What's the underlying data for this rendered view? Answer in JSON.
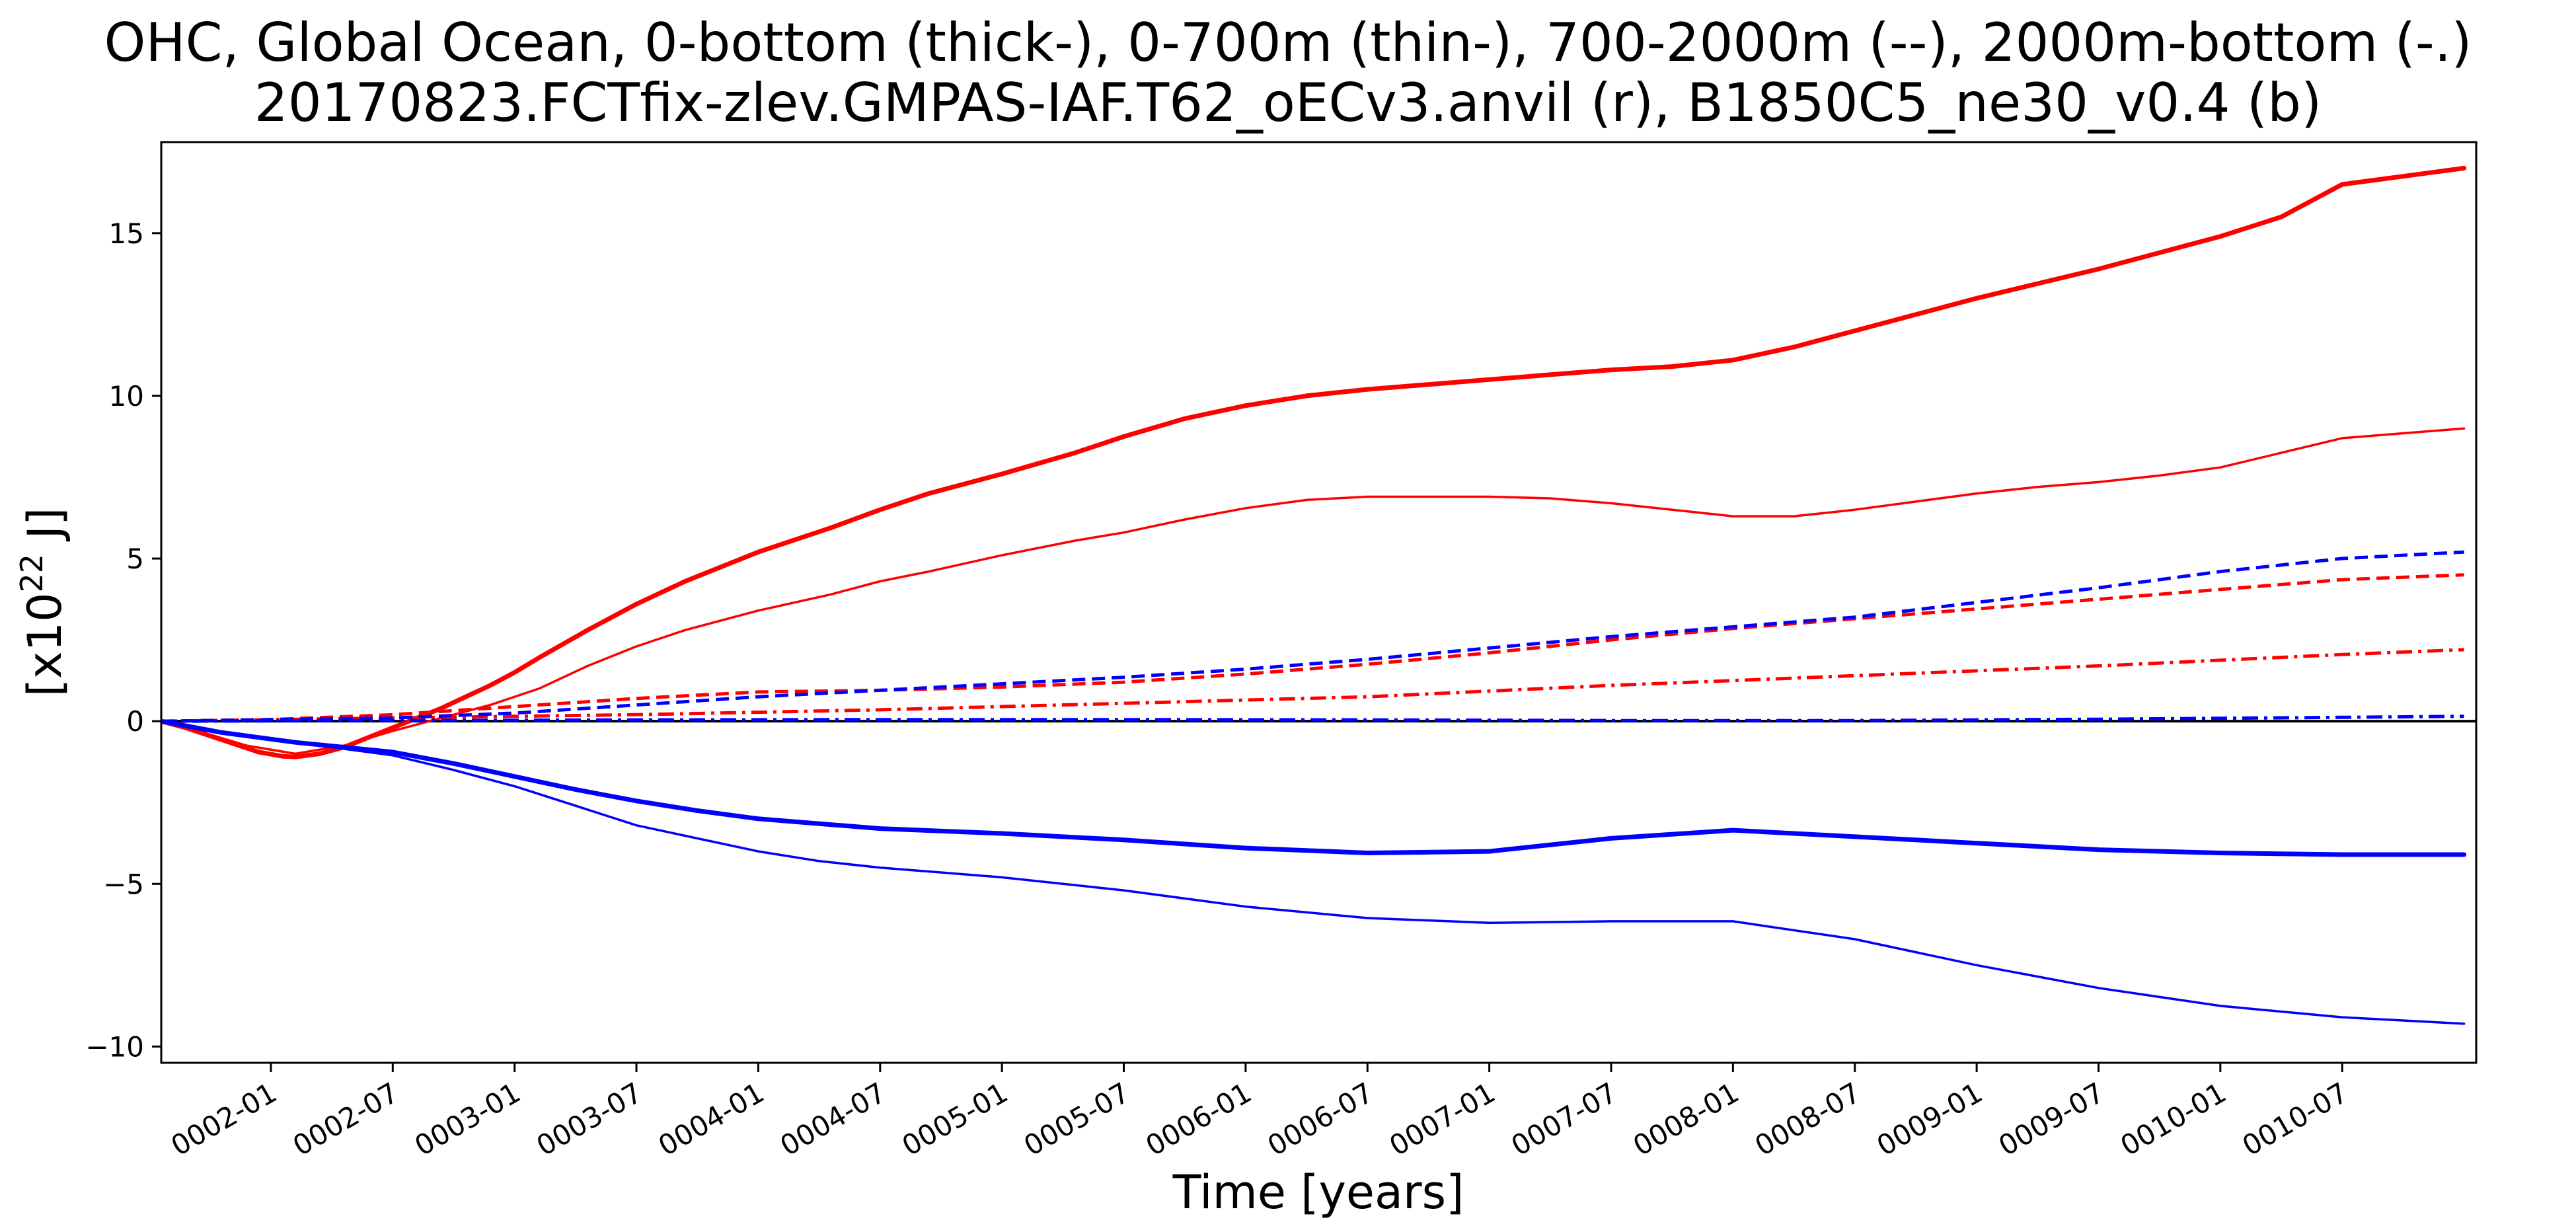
{
  "chart_data": {
    "type": "line",
    "title": "OHC, Global Ocean, 0-bottom (thick-), 0-700m (thin-), 700-2000m (--), 2000m-bottom (-.)",
    "subtitle": "20170823.FCTfix-zlev.GMPAS-IAF.T62_oECv3.anvil (r), B1850C5_ne30_v0.4 (b)",
    "xlabel": "Time [years]",
    "ylabel": {
      "base": "[x10",
      "superscript": "22",
      "unit": " J]"
    },
    "xlim": [
      1.05,
      10.55
    ],
    "ylim": [
      -10.5,
      17.8
    ],
    "grid": false,
    "legend": "none",
    "x_ticks": [
      {
        "x": 1.5,
        "label": "0002-01"
      },
      {
        "x": 2.0,
        "label": "0002-07"
      },
      {
        "x": 2.5,
        "label": "0003-01"
      },
      {
        "x": 3.0,
        "label": "0003-07"
      },
      {
        "x": 3.5,
        "label": "0004-01"
      },
      {
        "x": 4.0,
        "label": "0004-07"
      },
      {
        "x": 4.5,
        "label": "0005-01"
      },
      {
        "x": 5.0,
        "label": "0005-07"
      },
      {
        "x": 5.5,
        "label": "0006-01"
      },
      {
        "x": 6.0,
        "label": "0006-07"
      },
      {
        "x": 6.5,
        "label": "0007-01"
      },
      {
        "x": 7.0,
        "label": "0007-07"
      },
      {
        "x": 7.5,
        "label": "0008-01"
      },
      {
        "x": 8.0,
        "label": "0008-07"
      },
      {
        "x": 8.5,
        "label": "0009-01"
      },
      {
        "x": 9.0,
        "label": "0009-07"
      },
      {
        "x": 9.5,
        "label": "0010-01"
      },
      {
        "x": 10.0,
        "label": "0010-07"
      }
    ],
    "y_ticks": [
      {
        "y": -10,
        "label": "−10"
      },
      {
        "y": -5,
        "label": "−5"
      },
      {
        "y": 0,
        "label": "0"
      },
      {
        "y": 5,
        "label": "5"
      },
      {
        "y": 10,
        "label": "10"
      },
      {
        "y": 15,
        "label": "15"
      }
    ],
    "reference_line": {
      "y": 0,
      "color": "#000000"
    },
    "series": [
      {
        "color": "#ff0000",
        "style": "thick-solid",
        "x": [
          1.05,
          1.15,
          1.25,
          1.35,
          1.45,
          1.55,
          1.6,
          1.7,
          1.8,
          1.9,
          2.0,
          2.1,
          2.2,
          2.3,
          2.4,
          2.5,
          2.6,
          2.8,
          3.0,
          3.2,
          3.5,
          3.8,
          4.0,
          4.2,
          4.5,
          4.8,
          5.0,
          5.25,
          5.5,
          5.75,
          6.0,
          6.25,
          6.5,
          6.75,
          7.0,
          7.25,
          7.5,
          7.75,
          8.0,
          8.25,
          8.5,
          8.75,
          9.0,
          9.25,
          9.5,
          9.75,
          10.0,
          10.5
        ],
        "y": [
          0.0,
          -0.2,
          -0.45,
          -0.7,
          -0.95,
          -1.08,
          -1.1,
          -1.0,
          -0.8,
          -0.5,
          -0.2,
          0.1,
          0.4,
          0.75,
          1.1,
          1.5,
          1.95,
          2.8,
          3.6,
          4.3,
          5.2,
          5.95,
          6.5,
          7.0,
          7.6,
          8.25,
          8.75,
          9.3,
          9.7,
          10.0,
          10.2,
          10.35,
          10.5,
          10.65,
          10.8,
          10.9,
          11.1,
          11.5,
          12.0,
          12.5,
          13.0,
          13.45,
          13.9,
          14.4,
          14.9,
          15.5,
          16.5,
          17.0
        ]
      },
      {
        "color": "#ff0000",
        "style": "thin-solid",
        "x": [
          1.05,
          1.2,
          1.4,
          1.6,
          1.8,
          2.0,
          2.2,
          2.4,
          2.6,
          2.8,
          3.0,
          3.2,
          3.5,
          3.8,
          4.0,
          4.2,
          4.5,
          4.8,
          5.0,
          5.25,
          5.5,
          5.75,
          6.0,
          6.25,
          6.5,
          6.75,
          7.0,
          7.25,
          7.5,
          7.75,
          8.0,
          8.25,
          8.5,
          8.75,
          9.0,
          9.25,
          9.5,
          9.75,
          10.0,
          10.5
        ],
        "y": [
          0.0,
          -0.3,
          -0.75,
          -1.0,
          -0.75,
          -0.3,
          0.1,
          0.5,
          1.0,
          1.7,
          2.3,
          2.8,
          3.4,
          3.9,
          4.3,
          4.6,
          5.1,
          5.55,
          5.8,
          6.2,
          6.55,
          6.8,
          6.9,
          6.9,
          6.9,
          6.85,
          6.7,
          6.5,
          6.3,
          6.3,
          6.5,
          6.75,
          7.0,
          7.2,
          7.35,
          7.55,
          7.8,
          8.25,
          8.7,
          9.0
        ]
      },
      {
        "color": "#ff0000",
        "style": "dashed",
        "x": [
          1.05,
          1.5,
          2.0,
          2.5,
          3.0,
          3.5,
          4.0,
          4.5,
          5.0,
          5.5,
          6.0,
          6.5,
          7.0,
          7.5,
          8.0,
          8.5,
          9.0,
          9.5,
          10.0,
          10.5
        ],
        "y": [
          0.0,
          0.05,
          0.2,
          0.45,
          0.7,
          0.9,
          0.95,
          1.05,
          1.2,
          1.45,
          1.75,
          2.1,
          2.5,
          2.85,
          3.15,
          3.45,
          3.75,
          4.05,
          4.35,
          4.5
        ]
      },
      {
        "color": "#ff0000",
        "style": "dash-dot",
        "x": [
          1.05,
          2.0,
          3.0,
          4.0,
          5.0,
          6.0,
          7.0,
          8.0,
          9.0,
          10.0,
          10.5
        ],
        "y": [
          0.0,
          0.1,
          0.2,
          0.35,
          0.55,
          0.75,
          1.1,
          1.4,
          1.7,
          2.05,
          2.2
        ]
      },
      {
        "color": "#0000ff",
        "style": "thick-solid",
        "x": [
          1.05,
          1.3,
          1.6,
          2.0,
          2.25,
          2.5,
          2.75,
          3.0,
          3.25,
          3.5,
          3.75,
          4.0,
          4.5,
          5.0,
          5.5,
          6.0,
          6.5,
          7.0,
          7.5,
          8.0,
          8.5,
          9.0,
          9.5,
          10.0,
          10.5
        ],
        "y": [
          0.0,
          -0.35,
          -0.65,
          -0.95,
          -1.3,
          -1.7,
          -2.1,
          -2.45,
          -2.75,
          -3.0,
          -3.15,
          -3.3,
          -3.45,
          -3.65,
          -3.9,
          -4.05,
          -4.0,
          -3.6,
          -3.35,
          -3.55,
          -3.75,
          -3.95,
          -4.05,
          -4.1,
          -4.1
        ]
      },
      {
        "color": "#0000ff",
        "style": "thin-solid",
        "x": [
          1.05,
          1.3,
          1.6,
          2.0,
          2.25,
          2.5,
          2.75,
          3.0,
          3.25,
          3.5,
          3.75,
          4.0,
          4.5,
          5.0,
          5.5,
          6.0,
          6.5,
          7.0,
          7.5,
          8.0,
          8.5,
          9.0,
          9.5,
          10.0,
          10.5
        ],
        "y": [
          0.0,
          -0.35,
          -0.65,
          -1.05,
          -1.5,
          -2.0,
          -2.6,
          -3.2,
          -3.6,
          -4.0,
          -4.3,
          -4.5,
          -4.8,
          -5.2,
          -5.7,
          -6.05,
          -6.2,
          -6.15,
          -6.15,
          -6.7,
          -7.5,
          -8.2,
          -8.75,
          -9.1,
          -9.3
        ]
      },
      {
        "color": "#0000ff",
        "style": "dashed",
        "x": [
          1.05,
          1.5,
          2.0,
          2.5,
          3.0,
          3.5,
          4.0,
          4.5,
          5.0,
          5.5,
          6.0,
          6.5,
          7.0,
          7.5,
          8.0,
          8.5,
          9.0,
          9.5,
          10.0,
          10.5
        ],
        "y": [
          0.0,
          0.05,
          0.1,
          0.25,
          0.5,
          0.75,
          0.95,
          1.15,
          1.35,
          1.6,
          1.9,
          2.25,
          2.6,
          2.9,
          3.2,
          3.65,
          4.1,
          4.6,
          5.0,
          5.2
        ]
      },
      {
        "color": "#0000ff",
        "style": "dash-dot",
        "x": [
          1.05,
          2.0,
          3.0,
          4.0,
          5.0,
          6.0,
          7.0,
          8.0,
          9.0,
          10.0,
          10.5
        ],
        "y": [
          0.0,
          0.02,
          0.04,
          0.05,
          0.05,
          0.04,
          0.02,
          0.02,
          0.06,
          0.12,
          0.15
        ]
      }
    ]
  }
}
